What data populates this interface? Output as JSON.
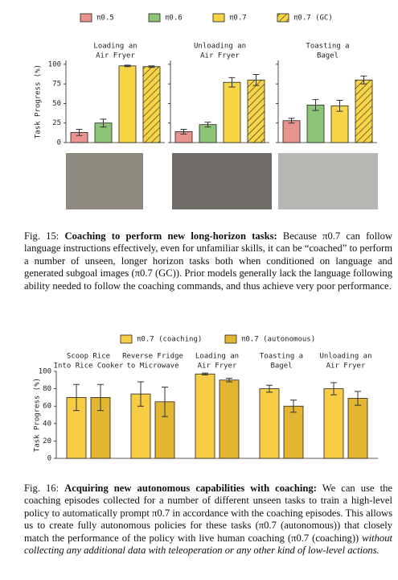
{
  "chart_data": [
    {
      "type": "bar",
      "y_label": "Task Progress (%)",
      "categories": [
        [
          "Loading an",
          "Air Fryer"
        ],
        [
          "Unloading an",
          "Air Fryer"
        ],
        [
          "Toasting a",
          "Bagel"
        ]
      ],
      "series": [
        {
          "name": "π0.5",
          "color": "#e8938d",
          "values": [
            13,
            14,
            28
          ],
          "errors": [
            4,
            3,
            3
          ]
        },
        {
          "name": "π0.6",
          "color": "#8cc477",
          "values": [
            25,
            23,
            48
          ],
          "errors": [
            5,
            3,
            7
          ]
        },
        {
          "name": "π0.7",
          "color": "#f7d547",
          "values": [
            98,
            77,
            47
          ],
          "errors": [
            1,
            6,
            7
          ]
        },
        {
          "name": "π0.7 (GC)",
          "color": "#f7d547",
          "hatch": true,
          "values": [
            97,
            80,
            80
          ],
          "errors": [
            1,
            7,
            5
          ]
        }
      ],
      "ylim": [
        0,
        105
      ],
      "yticks": [
        0,
        25,
        50,
        75,
        100
      ]
    },
    {
      "type": "bar",
      "y_label": "Task Progress (%)",
      "categories": [
        [
          "Scoop Rice",
          "Into Rice Cooker"
        ],
        [
          "Reverse Fridge",
          "to Microwave"
        ],
        [
          "Loading an",
          "Air Fryer"
        ],
        [
          "Toasting a",
          "Bagel"
        ],
        [
          "Unloading an",
          "Air Fryer"
        ]
      ],
      "series": [
        {
          "name": "π0.7 (coaching)",
          "color": "#f6cd45",
          "values": [
            70,
            74,
            97,
            80,
            80
          ],
          "errors": [
            15,
            14,
            1,
            4,
            7
          ]
        },
        {
          "name": "π0.7 (autonomous)",
          "color": "#e2b532",
          "values": [
            70,
            65,
            90,
            60,
            69
          ],
          "errors": [
            15,
            17,
            2,
            7,
            8
          ]
        }
      ],
      "ylim": [
        0,
        100
      ],
      "yticks": [
        0,
        20,
        40,
        60,
        80,
        100
      ]
    }
  ],
  "captions": [
    {
      "label": "Fig. 15:",
      "heading": "Coaching to perform new long-horizon tasks:",
      "body": "Because π0.7 can follow language instructions effectively, even for unfamiliar skills, it can be “coached” to perform a number of unseen, longer horizon tasks both when conditioned on language and generated subgoal images (π0.7 (GC)). Prior models generally lack the language following ability needed to follow the coaching commands, and thus achieve very poor performance."
    },
    {
      "label": "Fig. 16:",
      "heading": "Acquiring new autonomous capabilities with coaching:",
      "body": "We can use the coaching episodes collected for a number of different unseen tasks to train a high-level policy to automatically prompt π0.7 in accordance with the coaching episodes. This allows us to create fully autonomous policies for these tasks (π0.7 (autonomous)) that closely match the performance of the policy with live human coaching (π0.7 (coaching))",
      "body_italic": "without collecting any additional data with teleoperation or any other kind of low-level actions."
    }
  ]
}
